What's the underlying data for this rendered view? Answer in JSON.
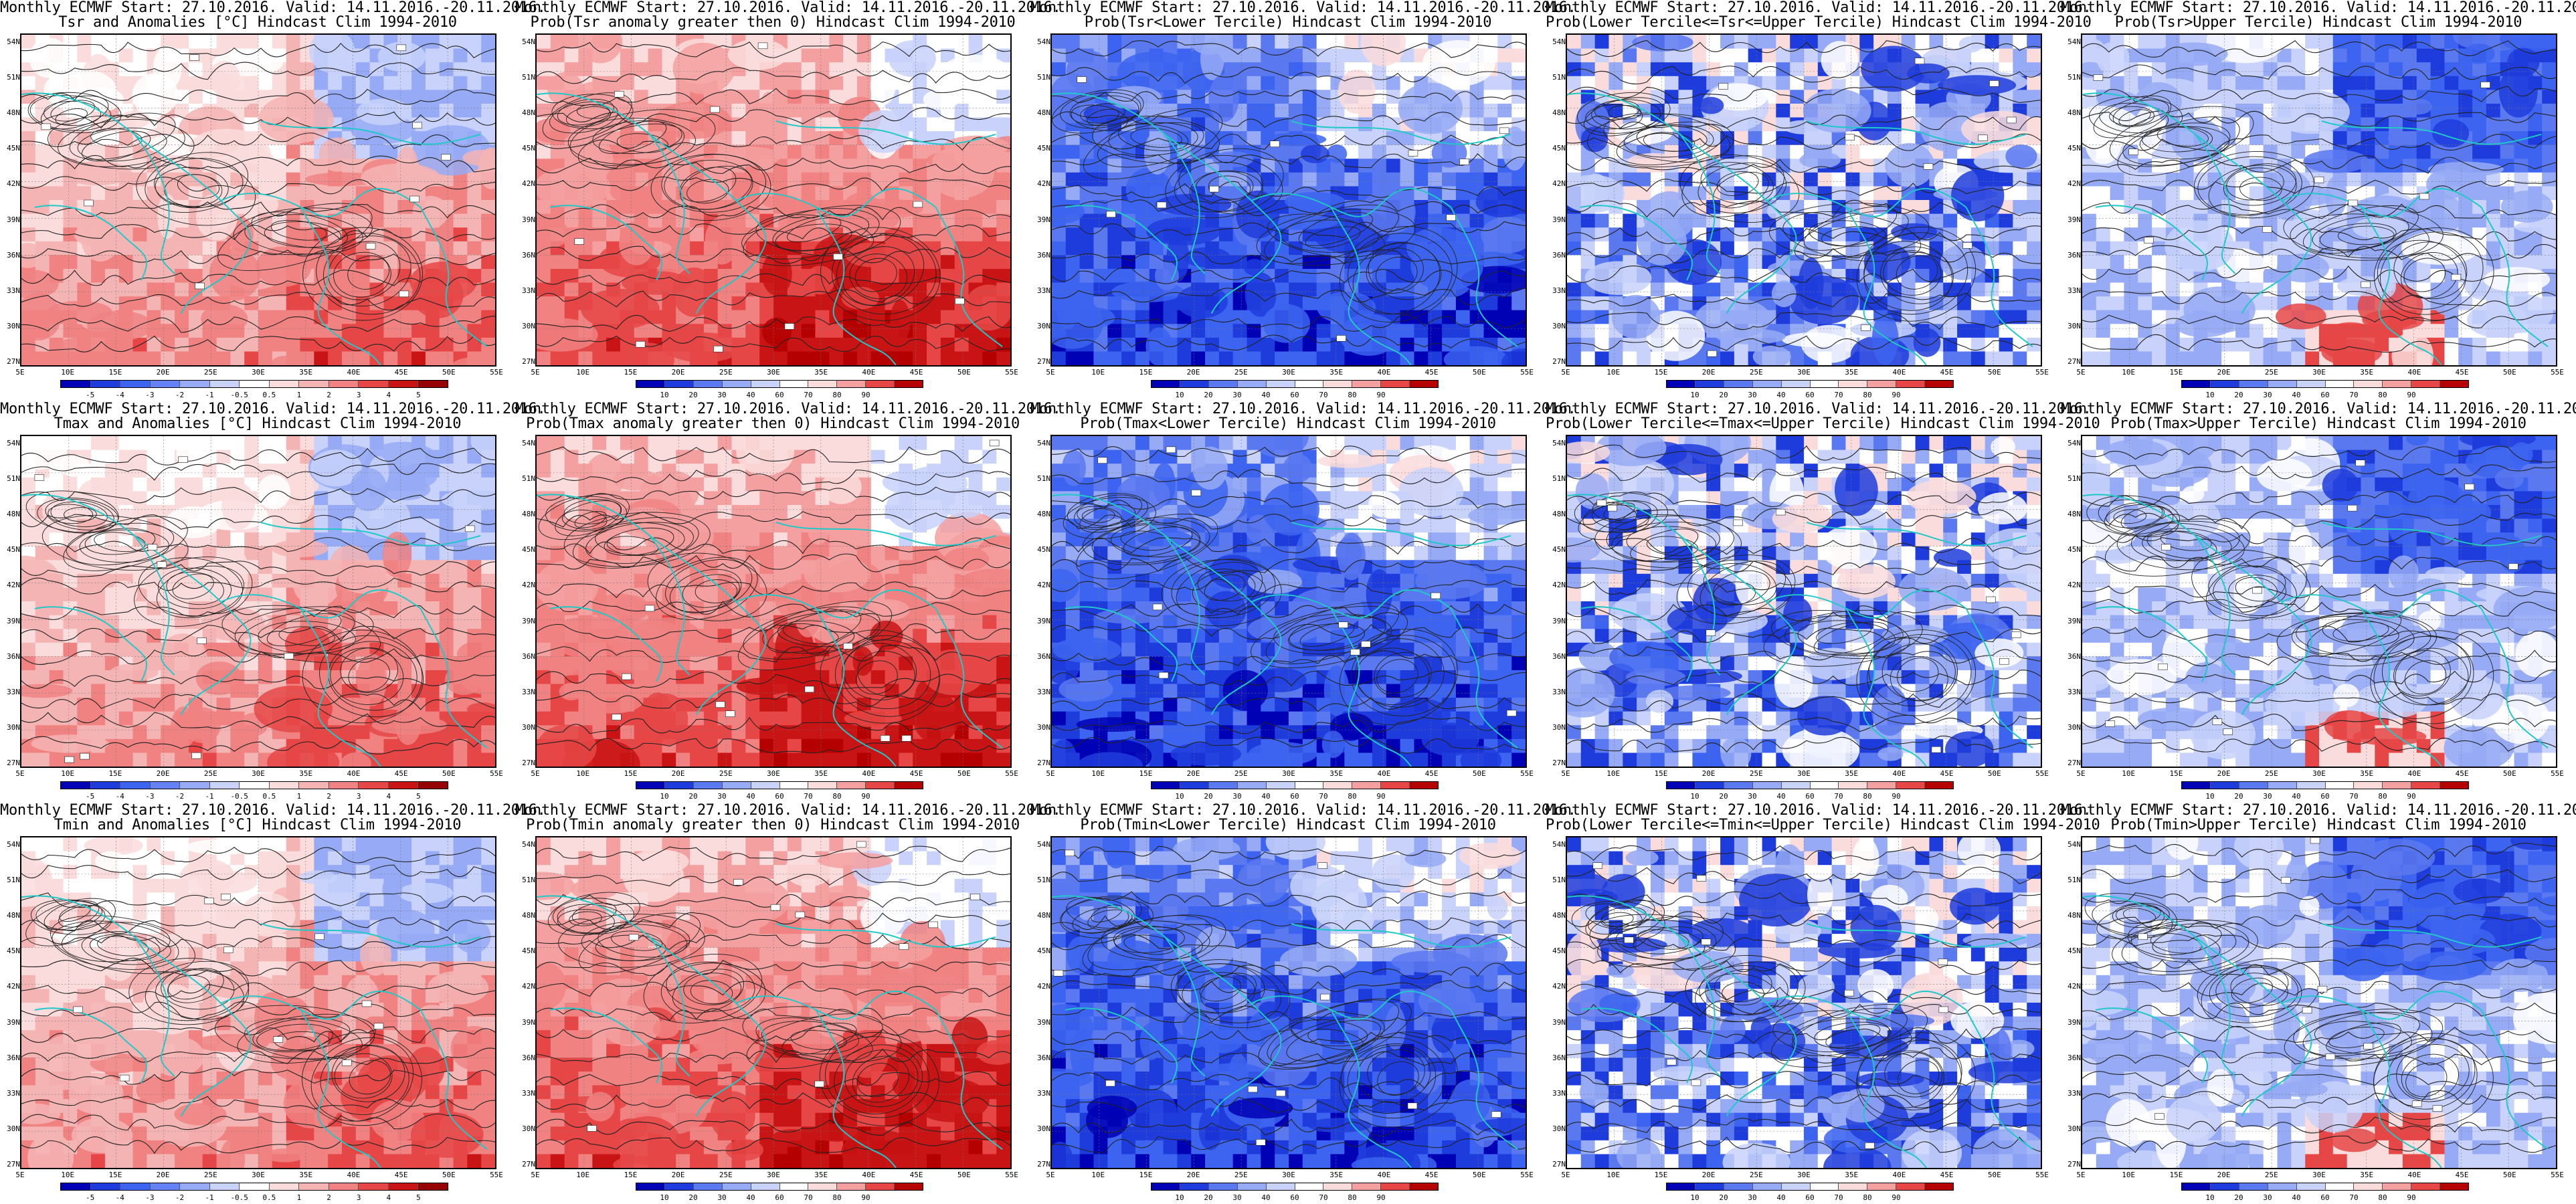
{
  "header_line": "Monthly ECMWF Start: 27.10.2016. Valid: 14.11.2016.-20.11.2016.",
  "lat_ticks": [
    "54N",
    "51N",
    "48N",
    "45N",
    "42N",
    "39N",
    "36N",
    "33N",
    "30N",
    "27N"
  ],
  "lon_ticks": [
    "5E",
    "10E",
    "15E",
    "20E",
    "25E",
    "30E",
    "35E",
    "40E",
    "45E",
    "50E",
    "55E"
  ],
  "colorbars": {
    "anomaly": {
      "labels": [
        "-5",
        "-4",
        "-3",
        "-2",
        "-1",
        "-0.5",
        "0.5",
        "1",
        "2",
        "3",
        "4",
        "5"
      ],
      "colors": [
        "#0000b4",
        "#1e3cdc",
        "#3c64f0",
        "#6482f5",
        "#96aaf5",
        "#c8d2fa",
        "#ffffff",
        "#fadcdc",
        "#f5b4b4",
        "#f08282",
        "#e64646",
        "#c81414",
        "#960000"
      ]
    },
    "probability": {
      "labels": [
        "10",
        "20",
        "30",
        "40",
        "60",
        "70",
        "80",
        "90"
      ],
      "colors": [
        "#0000b4",
        "#1e3cdc",
        "#5a78f0",
        "#96aaf5",
        "#c8d2fa",
        "#ffffff",
        "#fadcdc",
        "#f5a0a0",
        "#e64646",
        "#b40000"
      ]
    }
  },
  "panels": [
    {
      "title": "Tsr and Anomalies [°C] Hindcast Clim 1994-2010",
      "kind": "anomaly",
      "scheme": "warm-anom"
    },
    {
      "title": "Prob(Tsr anomaly greater then 0) Hindcast Clim 1994-2010",
      "kind": "probability",
      "scheme": "warm-prob"
    },
    {
      "title": "Prob(Tsr<Lower Tercile) Hindcast Clim 1994-2010",
      "kind": "probability",
      "scheme": "deep-blue"
    },
    {
      "title": "Prob(Lower Tercile<=Tsr<=Upper Tercile) Hindcast Clim 1994-2010",
      "kind": "probability",
      "scheme": "mid-blue"
    },
    {
      "title": "Prob(Tsr>Upper Tercile) Hindcast Clim 1994-2010",
      "kind": "probability",
      "scheme": "upper"
    },
    {
      "title": "Tmax and Anomalies [°C] Hindcast Clim 1994-2010",
      "kind": "anomaly",
      "scheme": "warm-anom"
    },
    {
      "title": "Prob(Tmax anomaly greater then 0) Hindcast Clim 1994-2010",
      "kind": "probability",
      "scheme": "warm-prob"
    },
    {
      "title": "Prob(Tmax<Lower Tercile) Hindcast Clim 1994-2010",
      "kind": "probability",
      "scheme": "deep-blue"
    },
    {
      "title": "Prob(Lower Tercile<=Tmax<=Upper Tercile) Hindcast Clim 1994-2010",
      "kind": "probability",
      "scheme": "mid-blue"
    },
    {
      "title": "Prob(Tmax>Upper Tercile) Hindcast Clim 1994-2010",
      "kind": "probability",
      "scheme": "upper"
    },
    {
      "title": "Tmin and Anomalies [°C] Hindcast Clim 1994-2010",
      "kind": "anomaly",
      "scheme": "warm-anom"
    },
    {
      "title": "Prob(Tmin anomaly greater then 0) Hindcast Clim 1994-2010",
      "kind": "probability",
      "scheme": "warm-prob"
    },
    {
      "title": "Prob(Tmin<Lower Tercile) Hindcast Clim 1994-2010",
      "kind": "probability",
      "scheme": "deep-blue"
    },
    {
      "title": "Prob(Lower Tercile<=Tmin<=Upper Tercile) Hindcast Clim 1994-2010",
      "kind": "probability",
      "scheme": "mid-blue"
    },
    {
      "title": "Prob(Tmin>Upper Tercile) Hindcast Clim 1994-2010",
      "kind": "probability",
      "scheme": "upper"
    }
  ]
}
